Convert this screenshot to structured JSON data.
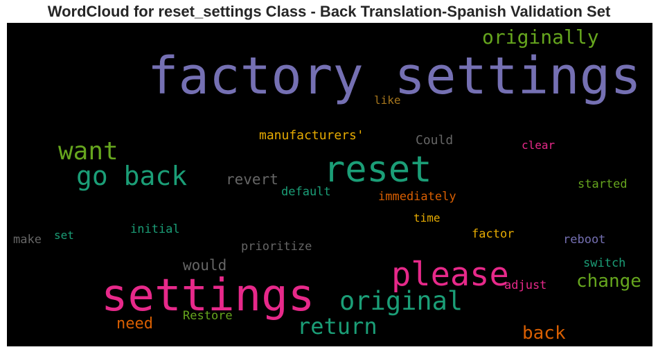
{
  "title": "WordCloud for reset_settings Class - Back Translation-Spanish Validation Set",
  "colors": {
    "purple": "#7570b3",
    "teal": "#1b9e77",
    "magenta": "#e7298a",
    "green": "#66a61e",
    "orange": "#d95f02",
    "gold": "#e6ab02",
    "brown": "#a6761d",
    "gray": "#666666",
    "background": "#000000"
  },
  "words": [
    {
      "text": "factory settings",
      "color": "#7570b3"
    },
    {
      "text": "settings",
      "color": "#e7298a"
    },
    {
      "text": "reset",
      "color": "#1b9e77"
    },
    {
      "text": "please",
      "color": "#e7298a"
    },
    {
      "text": "go back",
      "color": "#1b9e77"
    },
    {
      "text": "original",
      "color": "#1b9e77"
    },
    {
      "text": "want",
      "color": "#66a61e"
    },
    {
      "text": "return",
      "color": "#1b9e77"
    },
    {
      "text": "originally",
      "color": "#66a61e"
    },
    {
      "text": "change",
      "color": "#66a61e"
    },
    {
      "text": "back",
      "color": "#d95f02"
    },
    {
      "text": "need",
      "color": "#d95f02"
    },
    {
      "text": "revert",
      "color": "#666666"
    },
    {
      "text": "would",
      "color": "#666666"
    },
    {
      "text": "manufacturers'",
      "color": "#e6ab02"
    },
    {
      "text": "Could",
      "color": "#666666"
    },
    {
      "text": "immediately",
      "color": "#d95f02"
    },
    {
      "text": "default",
      "color": "#1b9e77"
    },
    {
      "text": "clear",
      "color": "#e7298a"
    },
    {
      "text": "started",
      "color": "#66a61e"
    },
    {
      "text": "like",
      "color": "#a6761d"
    },
    {
      "text": "time",
      "color": "#e6ab02"
    },
    {
      "text": "factor",
      "color": "#e6ab02"
    },
    {
      "text": "reboot",
      "color": "#7570b3"
    },
    {
      "text": "switch",
      "color": "#1b9e77"
    },
    {
      "text": "adjust",
      "color": "#e7298a"
    },
    {
      "text": "Restore",
      "color": "#66a61e"
    },
    {
      "text": "prioritize",
      "color": "#666666"
    },
    {
      "text": "initial",
      "color": "#1b9e77"
    },
    {
      "text": "set",
      "color": "#1b9e77"
    },
    {
      "text": "make",
      "color": "#666666"
    }
  ]
}
